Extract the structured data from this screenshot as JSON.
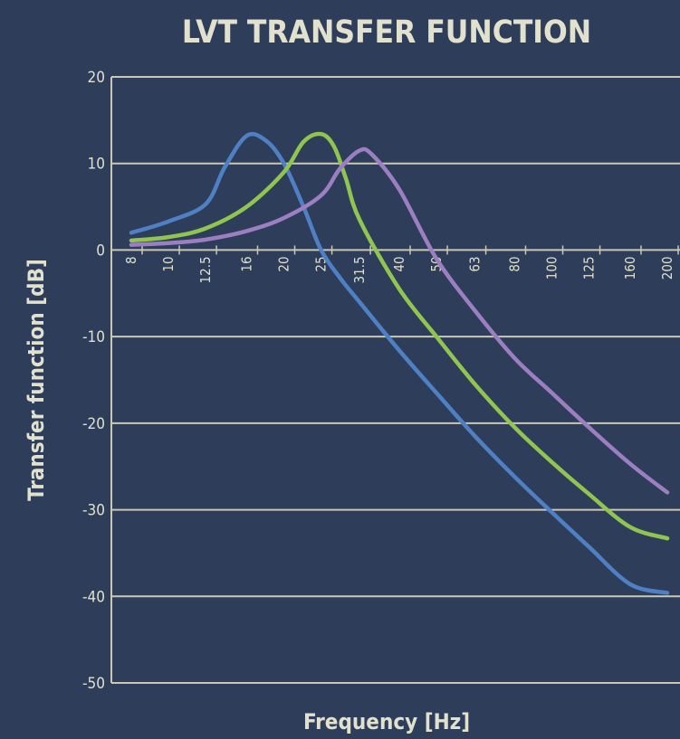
{
  "chart_data": {
    "type": "line",
    "title": "LVT TRANSFER FUNCTION",
    "xlabel": "Frequency [Hz]",
    "ylabel": "Transfer function [dB]",
    "x_scale": "log",
    "ylim": [
      -50,
      20
    ],
    "y_ticks": [
      20,
      10,
      0,
      -10,
      -20,
      -30,
      -40,
      -50
    ],
    "grid": "horizontal",
    "categories": [
      "8",
      "10",
      "12.5",
      "16",
      "20",
      "25",
      "31.5",
      "40",
      "50",
      "63",
      "80",
      "100",
      "125",
      "160",
      "200"
    ],
    "series": [
      {
        "color": "#4f80c4",
        "x": [
          8,
          10,
          12.5,
          14,
          16,
          18,
          20,
          22.5,
          25,
          28,
          31.5,
          40,
          50,
          63,
          80,
          100,
          125,
          160,
          200
        ],
        "y": [
          2,
          3.3,
          5.3,
          9.5,
          13.2,
          12.6,
          10,
          5,
          0,
          -3.2,
          -6,
          -11.6,
          -16.5,
          -21.5,
          -26.2,
          -30.3,
          -34.3,
          -38.6,
          -39.6
        ]
      },
      {
        "color": "#8fc550",
        "x": [
          8,
          10,
          12.5,
          16,
          20,
          22.5,
          25,
          27,
          29,
          31.5,
          40,
          50,
          63,
          80,
          100,
          125,
          160,
          200
        ],
        "y": [
          1.1,
          1.5,
          2.5,
          5,
          9,
          12.5,
          13.4,
          12,
          8.3,
          3.5,
          -4.5,
          -10,
          -15.5,
          -20.5,
          -24.5,
          -28.2,
          -32,
          -33.3
        ]
      },
      {
        "color": "#9b7fc0",
        "x": [
          8,
          10,
          12.5,
          16,
          20,
          25,
          28,
          31.5,
          34,
          40,
          50,
          63,
          80,
          100,
          125,
          160,
          200
        ],
        "y": [
          0.6,
          0.8,
          1.2,
          2.2,
          3.7,
          6.3,
          9.4,
          11.5,
          11,
          7,
          -1,
          -7,
          -12.5,
          -16.5,
          -20.5,
          -24.7,
          -28
        ]
      }
    ]
  }
}
